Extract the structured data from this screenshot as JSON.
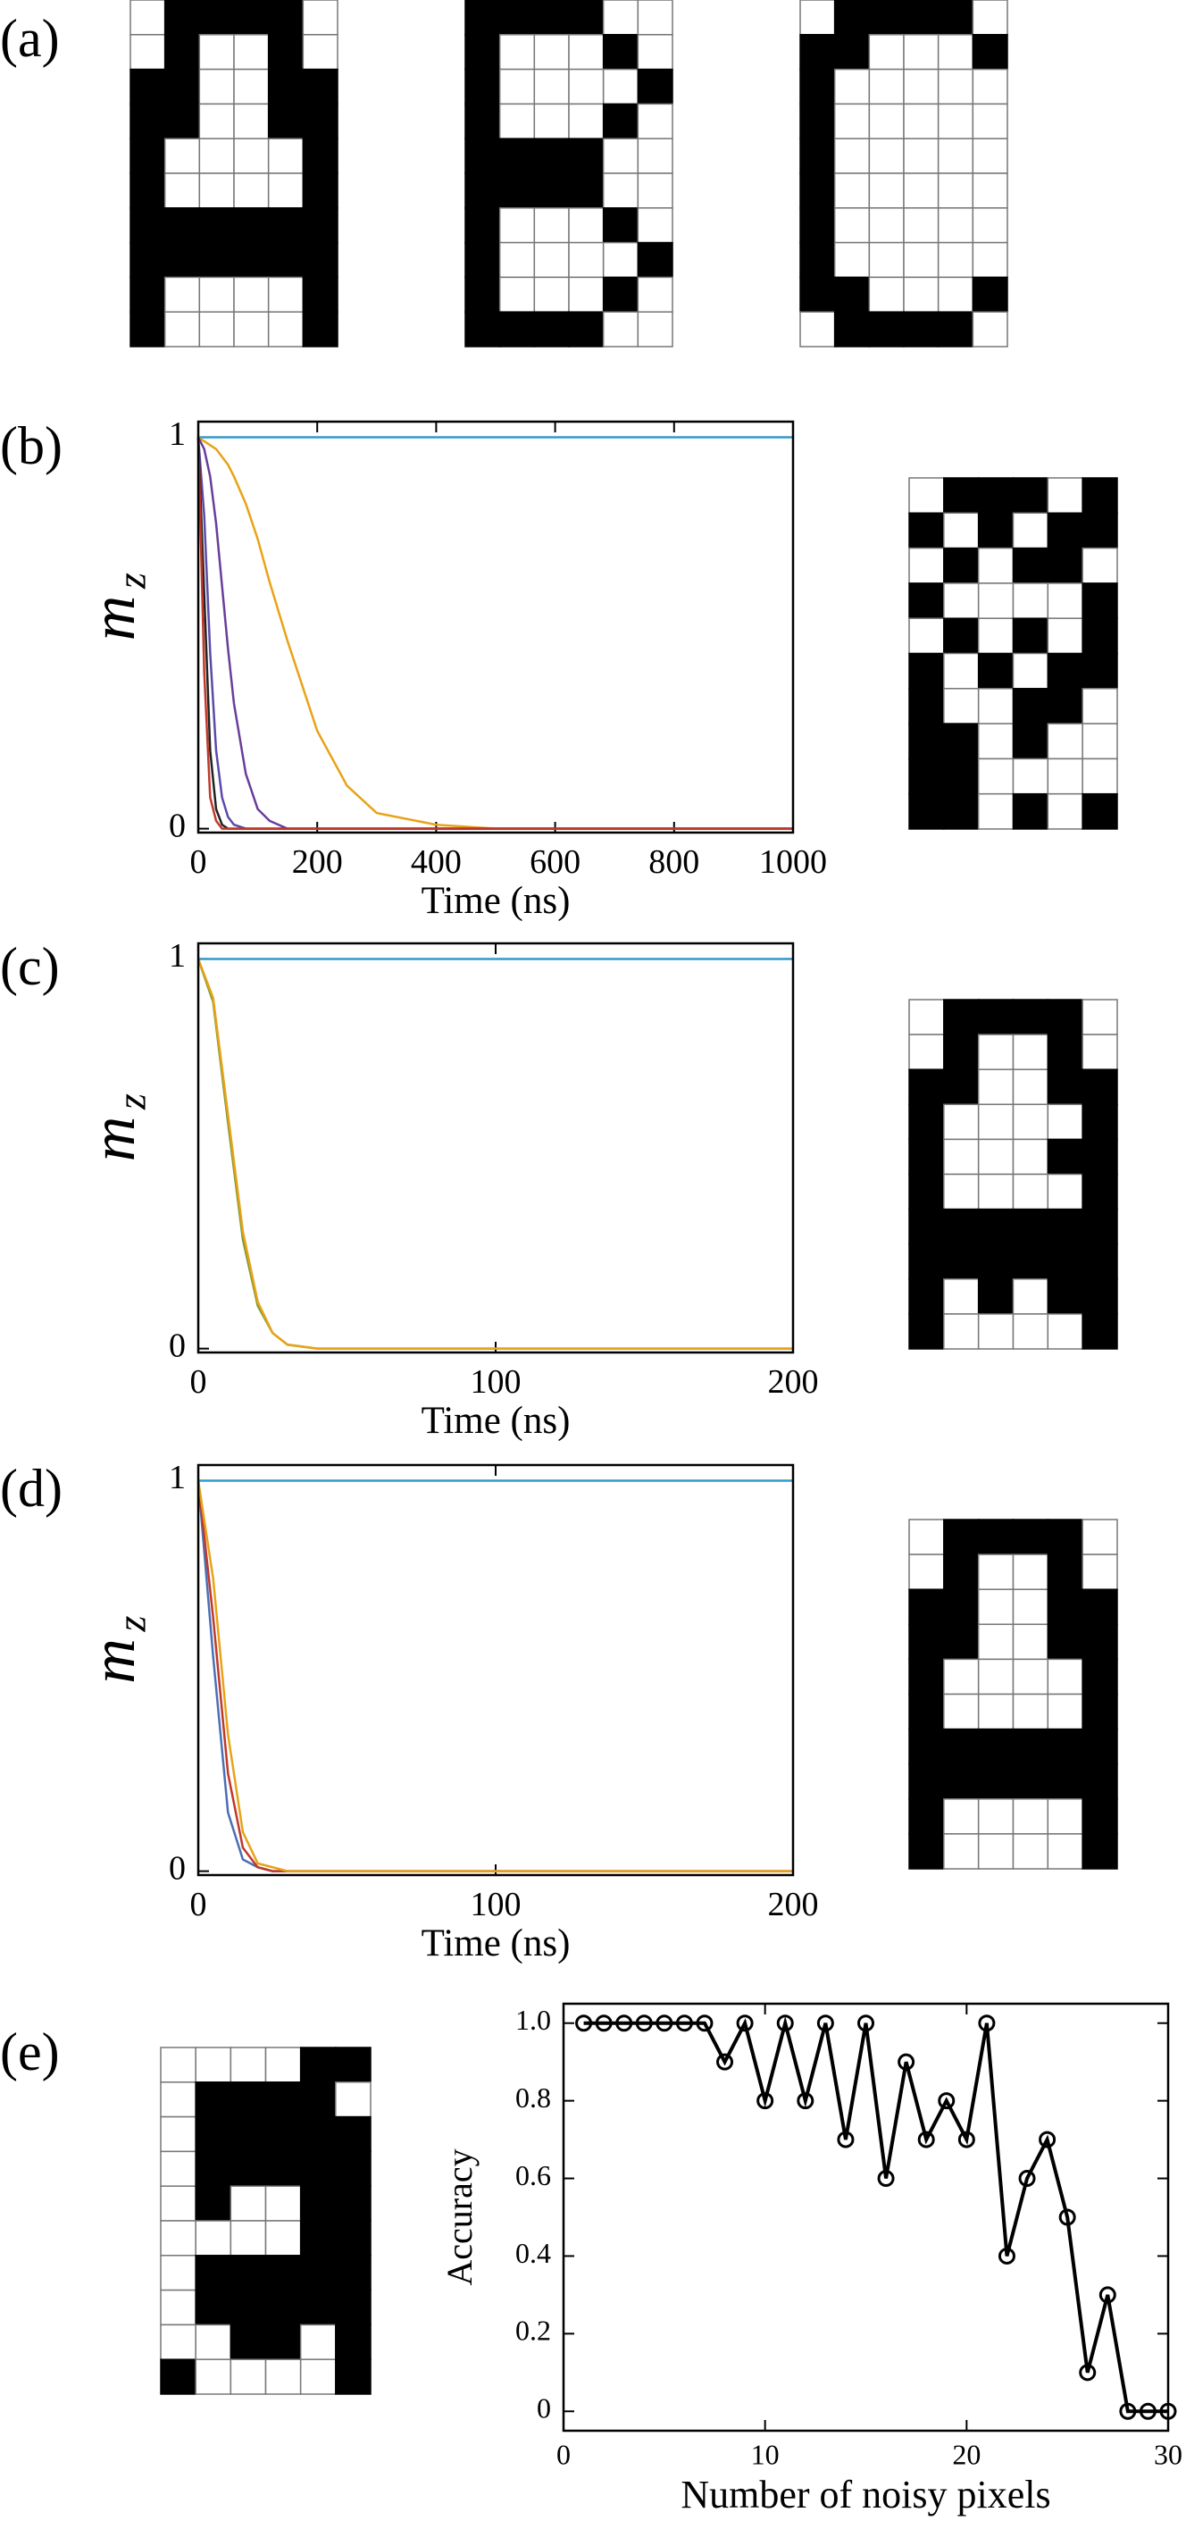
{
  "chart_data": [
    {
      "type": "pixel-grid",
      "panel": "(a)",
      "pixels": [
        [
          0,
          1,
          1,
          1,
          1,
          0
        ],
        [
          0,
          1,
          0,
          0,
          1,
          0
        ],
        [
          1,
          1,
          0,
          0,
          1,
          1
        ],
        [
          1,
          1,
          0,
          0,
          1,
          1
        ],
        [
          1,
          0,
          0,
          0,
          0,
          1
        ],
        [
          1,
          0,
          0,
          0,
          0,
          1
        ],
        [
          1,
          1,
          1,
          1,
          1,
          1
        ],
        [
          1,
          1,
          1,
          1,
          1,
          1
        ],
        [
          1,
          0,
          0,
          0,
          0,
          1
        ],
        [
          1,
          0,
          0,
          0,
          0,
          1
        ]
      ]
    },
    {
      "type": "pixel-grid",
      "pixels": [
        [
          1,
          1,
          1,
          1,
          0,
          0
        ],
        [
          1,
          0,
          0,
          0,
          1,
          0
        ],
        [
          1,
          0,
          0,
          0,
          0,
          1
        ],
        [
          1,
          0,
          0,
          0,
          1,
          0
        ],
        [
          1,
          1,
          1,
          1,
          0,
          0
        ],
        [
          1,
          1,
          1,
          1,
          0,
          0
        ],
        [
          1,
          0,
          0,
          0,
          1,
          0
        ],
        [
          1,
          0,
          0,
          0,
          0,
          1
        ],
        [
          1,
          0,
          0,
          0,
          1,
          0
        ],
        [
          1,
          1,
          1,
          1,
          0,
          0
        ]
      ]
    },
    {
      "type": "pixel-grid",
      "pixels": [
        [
          0,
          1,
          1,
          1,
          1,
          0
        ],
        [
          1,
          1,
          0,
          0,
          0,
          1
        ],
        [
          1,
          0,
          0,
          0,
          0,
          0
        ],
        [
          1,
          0,
          0,
          0,
          0,
          0
        ],
        [
          1,
          0,
          0,
          0,
          0,
          0
        ],
        [
          1,
          0,
          0,
          0,
          0,
          0
        ],
        [
          1,
          0,
          0,
          0,
          0,
          0
        ],
        [
          1,
          0,
          0,
          0,
          0,
          0
        ],
        [
          1,
          1,
          0,
          0,
          0,
          1
        ],
        [
          0,
          1,
          1,
          1,
          1,
          0
        ]
      ]
    },
    {
      "type": "line",
      "panel": "(b)",
      "x_label": "Time (ns)",
      "y_label": "m",
      "y_label_sub": "z",
      "xlim": [
        0,
        1000
      ],
      "ylim": [
        -0.01,
        1.04
      ],
      "xticks": [
        0,
        200,
        400,
        600,
        800,
        1000
      ],
      "yticks": [
        0,
        1
      ],
      "x": [
        0,
        10,
        20,
        30,
        40,
        50,
        60,
        80,
        100,
        120,
        150,
        200,
        250,
        300,
        400,
        500,
        600,
        800,
        1000
      ],
      "series": [
        {
          "color": "#3399cc",
          "values": [
            1,
            1,
            1,
            1,
            1,
            1,
            1,
            1,
            1,
            1,
            1,
            1,
            1,
            1,
            1,
            1,
            1,
            1,
            1
          ]
        },
        {
          "color": "#e8a317",
          "values": [
            1,
            0.99,
            0.98,
            0.97,
            0.95,
            0.93,
            0.9,
            0.83,
            0.74,
            0.63,
            0.48,
            0.25,
            0.11,
            0.04,
            0.01,
            0,
            0,
            0,
            0
          ]
        },
        {
          "color": "#6a3d9a",
          "values": [
            1,
            0.97,
            0.9,
            0.78,
            0.62,
            0.46,
            0.32,
            0.14,
            0.05,
            0.02,
            0,
            0,
            0,
            0,
            0,
            0,
            0,
            0,
            0
          ]
        },
        {
          "color": "#5b4aa8",
          "values": [
            1,
            0.8,
            0.45,
            0.2,
            0.08,
            0.03,
            0.01,
            0,
            0,
            0,
            0,
            0,
            0,
            0,
            0,
            0,
            0,
            0,
            0
          ]
        },
        {
          "color": "#222222",
          "values": [
            1,
            0.6,
            0.2,
            0.05,
            0.01,
            0,
            0,
            0,
            0,
            0,
            0,
            0,
            0,
            0,
            0,
            0,
            0,
            0,
            0
          ]
        },
        {
          "color": "#c0392b",
          "values": [
            1,
            0.4,
            0.08,
            0.02,
            0,
            0,
            0,
            0,
            0,
            0,
            0,
            0,
            0,
            0,
            0,
            0,
            0,
            0,
            0
          ]
        }
      ]
    },
    {
      "type": "pixel-grid",
      "pixels": [
        [
          0,
          1,
          1,
          1,
          0,
          1
        ],
        [
          1,
          0,
          1,
          0,
          1,
          1
        ],
        [
          0,
          1,
          0,
          1,
          1,
          0
        ],
        [
          1,
          0,
          0,
          0,
          0,
          1
        ],
        [
          0,
          1,
          0,
          1,
          0,
          1
        ],
        [
          1,
          0,
          1,
          0,
          1,
          1
        ],
        [
          1,
          0,
          0,
          1,
          1,
          0
        ],
        [
          1,
          1,
          0,
          1,
          0,
          0
        ],
        [
          1,
          1,
          0,
          0,
          0,
          0
        ],
        [
          1,
          1,
          0,
          1,
          0,
          1
        ]
      ]
    },
    {
      "type": "line",
      "panel": "(c)",
      "x_label": "Time (ns)",
      "y_label": "m",
      "y_label_sub": "z",
      "xlim": [
        0,
        200
      ],
      "ylim": [
        -0.01,
        1.04
      ],
      "xticks": [
        0,
        100,
        200
      ],
      "yticks": [
        0,
        1
      ],
      "x": [
        0,
        5,
        10,
        15,
        20,
        25,
        30,
        40,
        60,
        100,
        150,
        200
      ],
      "series": [
        {
          "color": "#3399cc",
          "values": [
            1,
            1,
            1,
            1,
            1,
            1,
            1,
            1,
            1,
            1,
            1,
            1
          ]
        },
        {
          "color": "#7a9a3a",
          "values": [
            1,
            0.89,
            0.58,
            0.28,
            0.11,
            0.04,
            0.01,
            0,
            0,
            0,
            0,
            0
          ]
        },
        {
          "color": "#e8a317",
          "values": [
            1,
            0.9,
            0.6,
            0.3,
            0.12,
            0.04,
            0.01,
            0,
            0,
            0,
            0,
            0
          ]
        }
      ]
    },
    {
      "type": "pixel-grid",
      "pixels": [
        [
          0,
          1,
          1,
          1,
          1,
          0
        ],
        [
          0,
          1,
          0,
          0,
          1,
          0
        ],
        [
          1,
          1,
          0,
          0,
          1,
          1
        ],
        [
          1,
          0,
          0,
          0,
          0,
          1
        ],
        [
          1,
          0,
          0,
          0,
          1,
          1
        ],
        [
          1,
          0,
          0,
          0,
          0,
          1
        ],
        [
          1,
          1,
          1,
          1,
          1,
          1
        ],
        [
          1,
          1,
          1,
          1,
          1,
          1
        ],
        [
          1,
          0,
          1,
          0,
          1,
          1
        ],
        [
          1,
          0,
          0,
          0,
          0,
          1
        ]
      ]
    },
    {
      "type": "line",
      "panel": "(d)",
      "x_label": "Time (ns)",
      "y_label": "m",
      "y_label_sub": "z",
      "xlim": [
        0,
        200
      ],
      "ylim": [
        -0.01,
        1.04
      ],
      "xticks": [
        0,
        100,
        200
      ],
      "yticks": [
        0,
        1
      ],
      "x": [
        0,
        5,
        10,
        15,
        20,
        25,
        30,
        40,
        60,
        100,
        150,
        200
      ],
      "series": [
        {
          "color": "#3399cc",
          "values": [
            1,
            1,
            1,
            1,
            1,
            1,
            1,
            1,
            1,
            1,
            1,
            1
          ]
        },
        {
          "color": "#4a6fb5",
          "values": [
            1,
            0.55,
            0.15,
            0.03,
            0.01,
            0,
            0,
            0,
            0,
            0,
            0,
            0
          ]
        },
        {
          "color": "#c0392b",
          "values": [
            1,
            0.65,
            0.25,
            0.06,
            0.01,
            0,
            0,
            0,
            0,
            0,
            0,
            0
          ]
        },
        {
          "color": "#e8a317",
          "values": [
            1,
            0.75,
            0.35,
            0.1,
            0.02,
            0.01,
            0,
            0,
            0,
            0,
            0,
            0
          ]
        }
      ]
    },
    {
      "type": "pixel-grid",
      "pixels": [
        [
          0,
          1,
          1,
          1,
          1,
          0
        ],
        [
          0,
          1,
          0,
          0,
          1,
          0
        ],
        [
          1,
          1,
          0,
          0,
          1,
          1
        ],
        [
          1,
          1,
          0,
          0,
          1,
          1
        ],
        [
          1,
          0,
          0,
          0,
          0,
          1
        ],
        [
          1,
          0,
          0,
          0,
          0,
          1
        ],
        [
          1,
          1,
          1,
          1,
          1,
          1
        ],
        [
          1,
          1,
          1,
          1,
          1,
          1
        ],
        [
          1,
          0,
          0,
          0,
          0,
          1
        ],
        [
          1,
          0,
          0,
          0,
          0,
          1
        ]
      ]
    },
    {
      "type": "pixel-grid",
      "panel": "(e)",
      "pixels": [
        [
          0,
          0,
          0,
          0,
          1,
          1
        ],
        [
          0,
          1,
          1,
          1,
          1,
          0
        ],
        [
          0,
          1,
          1,
          1,
          1,
          1
        ],
        [
          0,
          1,
          1,
          1,
          1,
          1
        ],
        [
          0,
          1,
          0,
          0,
          1,
          1
        ],
        [
          0,
          0,
          0,
          0,
          1,
          1
        ],
        [
          0,
          1,
          1,
          1,
          1,
          1
        ],
        [
          0,
          1,
          1,
          1,
          1,
          1
        ],
        [
          0,
          0,
          1,
          1,
          0,
          1
        ],
        [
          1,
          0,
          0,
          0,
          0,
          1
        ]
      ]
    },
    {
      "type": "line",
      "x_label": "Number of noisy pixels",
      "y_label": "Accuracy",
      "marker": "o",
      "xlim": [
        0,
        30
      ],
      "ylim": [
        -0.05,
        1.05
      ],
      "xticks": [
        0,
        10,
        20,
        30
      ],
      "yticks": [
        0,
        0.2,
        0.4,
        0.6,
        0.8,
        {
          "value": 1,
          "label": "1.0"
        }
      ],
      "x": [
        1,
        2,
        3,
        4,
        5,
        6,
        7,
        8,
        9,
        10,
        11,
        12,
        13,
        14,
        15,
        16,
        17,
        18,
        19,
        20,
        21,
        22,
        23,
        24,
        25,
        26,
        27,
        28,
        29,
        30
      ],
      "series": [
        {
          "color": "#000000",
          "values": [
            1,
            1,
            1,
            1,
            1,
            1,
            1,
            0.9,
            1,
            0.8,
            1,
            0.8,
            1,
            0.7,
            1,
            0.6,
            0.9,
            0.7,
            0.8,
            0.7,
            1,
            0.4,
            0.6,
            0.7,
            0.5,
            0.1,
            0.3,
            0,
            0,
            0
          ]
        }
      ]
    }
  ]
}
